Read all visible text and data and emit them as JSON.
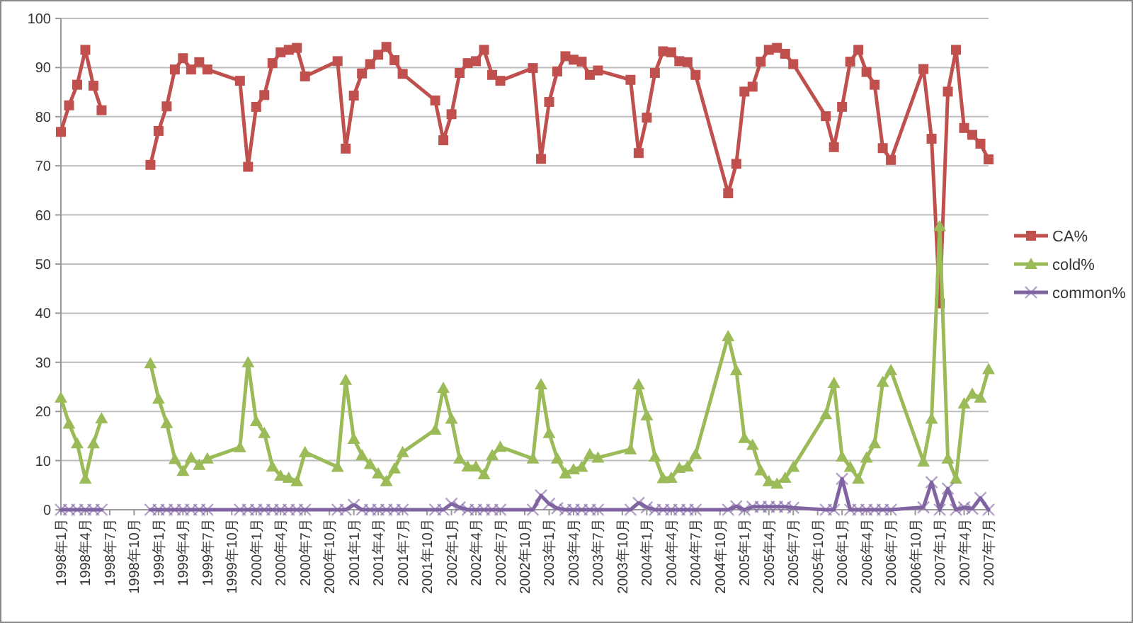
{
  "chart_data": {
    "type": "line",
    "x": [
      "1998-01",
      "1998-02",
      "1998-03",
      "1998-04",
      "1998-05",
      "1998-06",
      "1998-12",
      "1999-01",
      "1999-02",
      "1999-03",
      "1999-04",
      "1999-05",
      "1999-06",
      "1999-07",
      "1999-11",
      "1999-12",
      "2000-01",
      "2000-02",
      "2000-03",
      "2000-04",
      "2000-05",
      "2000-06",
      "2000-07",
      "2000-11",
      "2000-12",
      "2001-01",
      "2001-02",
      "2001-03",
      "2001-04",
      "2001-05",
      "2001-06",
      "2001-07",
      "2001-11",
      "2001-12",
      "2002-01",
      "2002-02",
      "2002-03",
      "2002-04",
      "2002-05",
      "2002-06",
      "2002-07",
      "2002-11",
      "2002-12",
      "2003-01",
      "2003-02",
      "2003-03",
      "2003-04",
      "2003-05",
      "2003-06",
      "2003-07",
      "2003-11",
      "2003-12",
      "2004-01",
      "2004-02",
      "2004-03",
      "2004-04",
      "2004-05",
      "2004-06",
      "2004-07",
      "2004-11",
      "2004-12",
      "2005-01",
      "2005-02",
      "2005-03",
      "2005-04",
      "2005-05",
      "2005-06",
      "2005-07",
      "2005-11",
      "2005-12",
      "2006-01",
      "2006-02",
      "2006-03",
      "2006-04",
      "2006-05",
      "2006-06",
      "2006-07",
      "2006-11",
      "2006-12",
      "2007-01",
      "2007-02",
      "2007-03",
      "2007-04",
      "2007-05",
      "2007-06",
      "2007-07"
    ],
    "series": [
      {
        "name": "CA%",
        "color": "#c0504d",
        "marker": "square",
        "values": [
          76.9,
          82.3,
          86.5,
          93.6,
          86.3,
          81.3,
          70.2,
          77.1,
          82.1,
          89.6,
          91.9,
          89.6,
          91.1,
          89.6,
          87.3,
          69.8,
          82.0,
          84.4,
          90.9,
          93.1,
          93.6,
          94.0,
          88.2,
          91.3,
          73.5,
          84.3,
          88.8,
          90.7,
          92.6,
          94.2,
          91.5,
          88.7,
          83.3,
          75.2,
          80.5,
          88.9,
          90.9,
          91.3,
          93.6,
          88.5,
          87.3,
          89.9,
          71.4,
          83.0,
          89.2,
          92.3,
          91.6,
          91.2,
          88.5,
          89.4,
          87.5,
          72.6,
          79.8,
          88.9,
          93.3,
          93.1,
          91.3,
          91.1,
          88.5,
          64.4,
          70.4,
          85.1,
          86.1,
          91.2,
          93.6,
          94.0,
          92.8,
          90.7,
          80.1,
          73.8,
          82.0,
          91.2,
          93.6,
          89.1,
          86.5,
          73.6,
          71.2,
          89.7,
          75.5,
          42.0,
          85.1,
          93.6,
          77.7,
          76.3,
          74.5,
          71.3
        ]
      },
      {
        "name": "cold%",
        "color": "#9bbb59",
        "marker": "triangle",
        "values": [
          22.8,
          17.5,
          13.5,
          6.3,
          13.5,
          18.6,
          29.8,
          22.6,
          17.6,
          10.3,
          7.9,
          10.6,
          9.1,
          10.4,
          12.7,
          30.0,
          18.0,
          15.6,
          8.8,
          6.9,
          6.5,
          5.8,
          11.7,
          8.7,
          26.4,
          14.4,
          11.1,
          9.3,
          7.4,
          5.8,
          8.4,
          11.7,
          16.3,
          24.8,
          18.5,
          10.4,
          8.8,
          8.8,
          7.2,
          11.1,
          12.8,
          10.4,
          25.5,
          15.6,
          10.4,
          7.4,
          8.2,
          8.7,
          11.3,
          10.6,
          12.3,
          25.5,
          19.2,
          10.8,
          6.4,
          6.5,
          8.5,
          8.8,
          11.3,
          35.3,
          28.4,
          14.6,
          13.2,
          8.0,
          5.8,
          5.3,
          6.5,
          8.7,
          19.4,
          25.8,
          10.8,
          8.7,
          6.3,
          10.6,
          13.5,
          26.0,
          28.4,
          9.8,
          18.5,
          57.7,
          10.4,
          6.3,
          21.6,
          23.6,
          22.8,
          28.6
        ]
      },
      {
        "name": "common%",
        "color": "#8064a2",
        "marker": "cross",
        "values": [
          0,
          0,
          0,
          0,
          0,
          0,
          0,
          0,
          0,
          0,
          0,
          0,
          0,
          0,
          0,
          0,
          0,
          0,
          0,
          0,
          0,
          0,
          0,
          0,
          0,
          1.0,
          0,
          0,
          0,
          0,
          0,
          0,
          0,
          0,
          1.2,
          0.5,
          0,
          0,
          0,
          0,
          0,
          0,
          2.9,
          1.2,
          0.3,
          0,
          0,
          0,
          0,
          0,
          0,
          1.4,
          0.5,
          0,
          0,
          0,
          0,
          0,
          0,
          0,
          0.7,
          0,
          0.6,
          0.6,
          0.6,
          0.6,
          0.6,
          0.4,
          0,
          0,
          6.3,
          0,
          0,
          0,
          0,
          0,
          0,
          0.5,
          5.6,
          0,
          4.3,
          0,
          0.5,
          0.2,
          2.4,
          0
        ]
      }
    ],
    "xlim": [
      "1998-01",
      "2007-07"
    ],
    "xticks": [
      {
        "value": "1998-01",
        "label": "1998年1月"
      },
      {
        "value": "1998-04",
        "label": "1998年4月"
      },
      {
        "value": "1998-07",
        "label": "1998年7月"
      },
      {
        "value": "1998-10",
        "label": "1998年10月"
      },
      {
        "value": "1999-01",
        "label": "1999年1月"
      },
      {
        "value": "1999-04",
        "label": "1999年4月"
      },
      {
        "value": "1999-07",
        "label": "1999年7月"
      },
      {
        "value": "1999-10",
        "label": "1999年10月"
      },
      {
        "value": "2000-01",
        "label": "2000年1月"
      },
      {
        "value": "2000-04",
        "label": "2000年4月"
      },
      {
        "value": "2000-07",
        "label": "2000年7月"
      },
      {
        "value": "2000-10",
        "label": "2000年10月"
      },
      {
        "value": "2001-01",
        "label": "2001年1月"
      },
      {
        "value": "2001-04",
        "label": "2001年4月"
      },
      {
        "value": "2001-07",
        "label": "2001年7月"
      },
      {
        "value": "2001-10",
        "label": "2001年10月"
      },
      {
        "value": "2002-01",
        "label": "2002年1月"
      },
      {
        "value": "2002-04",
        "label": "2002年4月"
      },
      {
        "value": "2002-07",
        "label": "2002年7月"
      },
      {
        "value": "2002-10",
        "label": "2002年10月"
      },
      {
        "value": "2003-01",
        "label": "2003年1月"
      },
      {
        "value": "2003-04",
        "label": "2003年4月"
      },
      {
        "value": "2003-07",
        "label": "2003年7月"
      },
      {
        "value": "2003-10",
        "label": "2003年10月"
      },
      {
        "value": "2004-01",
        "label": "2004年1月"
      },
      {
        "value": "2004-04",
        "label": "2004年4月"
      },
      {
        "value": "2004-07",
        "label": "2004年7月"
      },
      {
        "value": "2004-10",
        "label": "2004年10月"
      },
      {
        "value": "2005-01",
        "label": "2005年1月"
      },
      {
        "value": "2005-04",
        "label": "2005年4月"
      },
      {
        "value": "2005-07",
        "label": "2005年7月"
      },
      {
        "value": "2005-10",
        "label": "2005年10月"
      },
      {
        "value": "2006-01",
        "label": "2006年1月"
      },
      {
        "value": "2006-04",
        "label": "2006年4月"
      },
      {
        "value": "2006-07",
        "label": "2006年7月"
      },
      {
        "value": "2006-10",
        "label": "2006年10月"
      },
      {
        "value": "2007-01",
        "label": "2007年1月"
      },
      {
        "value": "2007-04",
        "label": "2007年4月"
      },
      {
        "value": "2007-07",
        "label": "2007年7月"
      }
    ],
    "ylim": [
      0,
      100
    ],
    "yticks": [
      0,
      10,
      20,
      30,
      40,
      50,
      60,
      70,
      80,
      90,
      100
    ],
    "grid": "y",
    "legend": "right"
  }
}
